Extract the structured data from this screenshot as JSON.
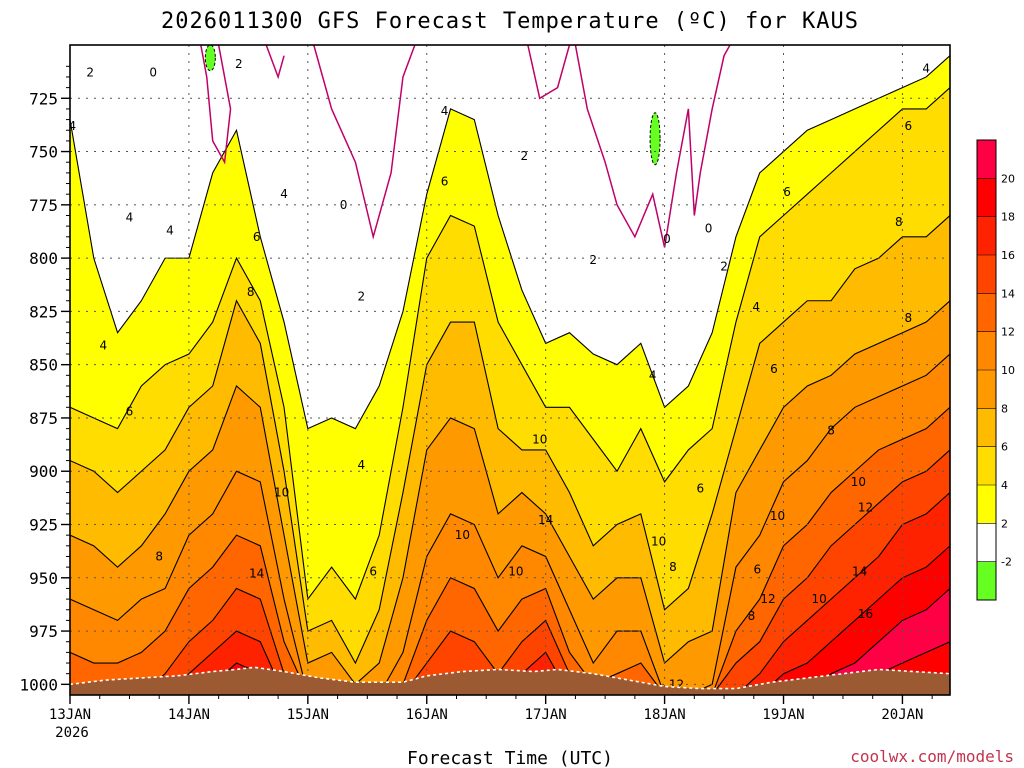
{
  "chart_data": {
    "type": "heatmap",
    "title": "2026011300 GFS Forecast Temperature (ºC) for KAUS",
    "xlabel": "Forecast Time (UTC)",
    "ylabel": "",
    "credit": "coolwx.com/models",
    "x_ticks": [
      "13JAN",
      "14JAN",
      "15JAN",
      "16JAN",
      "17JAN",
      "18JAN",
      "19JAN",
      "20JAN"
    ],
    "x_year": "2026",
    "x_range_days": [
      0,
      7.4
    ],
    "y_ticks": [
      725,
      750,
      775,
      800,
      825,
      850,
      875,
      900,
      925,
      950,
      975,
      1000
    ],
    "ylim": [
      1005,
      700
    ],
    "grid": true,
    "colorbar": {
      "levels": [
        "-2",
        "2",
        "4",
        "6",
        "8",
        "10",
        "12",
        "14",
        "16",
        "18",
        "20"
      ],
      "colors": [
        "#66ff22",
        "#ffffff",
        "#ffff00",
        "#ffdd00",
        "#ffbb00",
        "#ff9900",
        "#ff8800",
        "#ff6600",
        "#ff4400",
        "#ff2200",
        "#ff0000",
        "#ff0044"
      ]
    },
    "contour_labels": [
      {
        "text": "2",
        "x": 0.17,
        "y": 713
      },
      {
        "text": "0",
        "x": 0.7,
        "y": 713
      },
      {
        "text": "2",
        "x": 1.42,
        "y": 709
      },
      {
        "text": "4",
        "x": 0.02,
        "y": 738
      },
      {
        "text": "4",
        "x": 0.5,
        "y": 781
      },
      {
        "text": "4",
        "x": 0.84,
        "y": 787
      },
      {
        "text": "4",
        "x": 0.28,
        "y": 841
      },
      {
        "text": "6",
        "x": 0.5,
        "y": 872
      },
      {
        "text": "8",
        "x": 0.75,
        "y": 940
      },
      {
        "text": "6",
        "x": 1.57,
        "y": 790
      },
      {
        "text": "4",
        "x": 1.8,
        "y": 770
      },
      {
        "text": "8",
        "x": 1.52,
        "y": 816
      },
      {
        "text": "0",
        "x": 2.3,
        "y": 775
      },
      {
        "text": "2",
        "x": 2.45,
        "y": 818
      },
      {
        "text": "10",
        "x": 1.78,
        "y": 910
      },
      {
        "text": "14",
        "x": 1.57,
        "y": 948
      },
      {
        "text": "4",
        "x": 2.45,
        "y": 897
      },
      {
        "text": "6",
        "x": 2.55,
        "y": 947
      },
      {
        "text": "4",
        "x": 3.15,
        "y": 731
      },
      {
        "text": "6",
        "x": 3.15,
        "y": 764
      },
      {
        "text": "2",
        "x": 3.82,
        "y": 752
      },
      {
        "text": "10",
        "x": 3.3,
        "y": 930
      },
      {
        "text": "10",
        "x": 3.75,
        "y": 947
      },
      {
        "text": "10",
        "x": 3.95,
        "y": 885
      },
      {
        "text": "14",
        "x": 4.0,
        "y": 923
      },
      {
        "text": "2",
        "x": 4.4,
        "y": 801
      },
      {
        "text": "0",
        "x": 5.02,
        "y": 791
      },
      {
        "text": "0",
        "x": 5.37,
        "y": 786
      },
      {
        "text": "2",
        "x": 5.5,
        "y": 804
      },
      {
        "text": "4",
        "x": 4.9,
        "y": 855
      },
      {
        "text": "6",
        "x": 5.3,
        "y": 908
      },
      {
        "text": "10",
        "x": 4.95,
        "y": 933
      },
      {
        "text": "8",
        "x": 5.07,
        "y": 945
      },
      {
        "text": "12",
        "x": 5.1,
        "y": 1000
      },
      {
        "text": "4",
        "x": 5.77,
        "y": 823
      },
      {
        "text": "6",
        "x": 5.92,
        "y": 852
      },
      {
        "text": "6",
        "x": 6.03,
        "y": 769
      },
      {
        "text": "8",
        "x": 6.4,
        "y": 881
      },
      {
        "text": "10",
        "x": 6.63,
        "y": 905
      },
      {
        "text": "10",
        "x": 5.95,
        "y": 921
      },
      {
        "text": "6",
        "x": 5.78,
        "y": 946
      },
      {
        "text": "12",
        "x": 5.87,
        "y": 960
      },
      {
        "text": "8",
        "x": 5.73,
        "y": 968
      },
      {
        "text": "10",
        "x": 6.3,
        "y": 960
      },
      {
        "text": "12",
        "x": 6.69,
        "y": 917
      },
      {
        "text": "14",
        "x": 6.64,
        "y": 947
      },
      {
        "text": "16",
        "x": 6.69,
        "y": 967
      },
      {
        "text": "6",
        "x": 7.05,
        "y": 738
      },
      {
        "text": "8",
        "x": 6.97,
        "y": 783
      },
      {
        "text": "8",
        "x": 7.05,
        "y": 828
      },
      {
        "text": "4",
        "x": 7.2,
        "y": 711
      }
    ]
  }
}
